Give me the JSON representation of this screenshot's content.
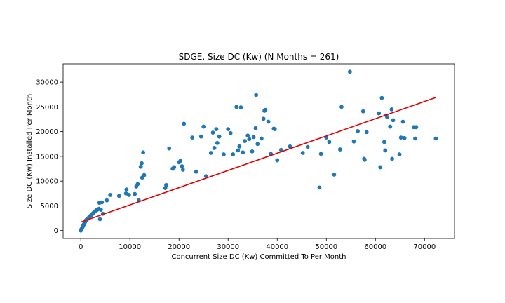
{
  "chart_data": {
    "type": "scatter",
    "title": "SDGE, Size DC (Kw) (N Months = 261)",
    "xlabel": "Concurrent Size DC (Kw) Committed To Per Month",
    "ylabel": "Size DC (Kw) Installed Per Month",
    "xlim": [
      -3600,
      76100
    ],
    "ylim": [
      -1600,
      33700
    ],
    "xticks": [
      0,
      10000,
      20000,
      30000,
      40000,
      50000,
      60000,
      70000
    ],
    "yticks": [
      0,
      5000,
      10000,
      15000,
      20000,
      25000,
      30000
    ],
    "grid": false,
    "colors": {
      "points": "#1f77b4",
      "trend": "#e30000"
    },
    "trendline": {
      "x": [
        0,
        72300
      ],
      "y": [
        1700,
        26900
      ]
    },
    "points": {
      "x": [
        0,
        100,
        200,
        300,
        400,
        500,
        600,
        700,
        800,
        900,
        1000,
        1100,
        1200,
        1300,
        1400,
        1500,
        1700,
        1900,
        2100,
        2300,
        2500,
        2700,
        2900,
        3100,
        3300,
        3500,
        3700,
        3900,
        4100,
        4300,
        4500,
        3800,
        5300,
        6000,
        7800,
        9200,
        9300,
        9800,
        11000,
        11300,
        11600,
        11800,
        12200,
        12400,
        12500,
        12700,
        12900,
        17200,
        17400,
        18000,
        18700,
        19000,
        20000,
        20300,
        20600,
        20800,
        21000,
        22700,
        23500,
        24500,
        25000,
        25500,
        26500,
        26900,
        27200,
        27600,
        27800,
        28200,
        29100,
        30000,
        30500,
        31000,
        31700,
        32000,
        32300,
        32600,
        33000,
        33400,
        34000,
        34300,
        34900,
        35200,
        35600,
        35700,
        36000,
        36800,
        37200,
        37400,
        37600,
        38200,
        38700,
        39300,
        39500,
        40000,
        40800,
        42600,
        45200,
        46200,
        48600,
        48900,
        50000,
        50600,
        51600,
        52800,
        53100,
        54800,
        55600,
        56400,
        57500,
        57700,
        57800,
        58200,
        60700,
        61000,
        61300,
        61800,
        62000,
        62200,
        62400,
        63000,
        63300,
        63400,
        63600,
        64900,
        65200,
        65600,
        65900,
        67800,
        68100,
        68300,
        72300
      ],
      "y": [
        0,
        200,
        400,
        600,
        800,
        1000,
        1200,
        1400,
        1600,
        1800,
        2000,
        2100,
        2200,
        2300,
        2400,
        2500,
        2700,
        2900,
        3100,
        3300,
        3500,
        3700,
        3900,
        4000,
        4200,
        4300,
        4400,
        2300,
        4200,
        5700,
        3400,
        5600,
        6100,
        7200,
        7000,
        7500,
        8300,
        7200,
        7400,
        8900,
        9400,
        6100,
        12900,
        13600,
        10700,
        15800,
        11200,
        8600,
        9200,
        16600,
        12500,
        12800,
        13800,
        14100,
        13000,
        12300,
        21600,
        18800,
        11900,
        19000,
        21000,
        11000,
        15700,
        19800,
        16700,
        20500,
        17700,
        19000,
        15400,
        20500,
        19700,
        15400,
        25000,
        16200,
        17000,
        24900,
        15800,
        18100,
        19200,
        18500,
        16000,
        18900,
        20700,
        27400,
        17500,
        18600,
        22600,
        24200,
        24400,
        22000,
        15500,
        20600,
        20500,
        14200,
        16300,
        17000,
        15700,
        16900,
        8700,
        15500,
        18800,
        17900,
        11300,
        16400,
        25000,
        32100,
        18000,
        20100,
        24100,
        14500,
        14300,
        19900,
        23700,
        12800,
        26800,
        17900,
        16200,
        23300,
        22900,
        21000,
        24500,
        14500,
        22300,
        15400,
        18800,
        22000,
        18700,
        20900,
        18600,
        20900,
        18600
      ]
    }
  }
}
